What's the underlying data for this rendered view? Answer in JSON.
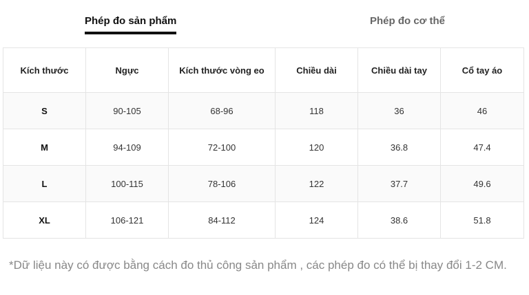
{
  "tabs": {
    "product_label": "Phép đo sản phẩm",
    "body_label": "Phép đo cơ thể"
  },
  "table": {
    "headers": [
      "Kích thước",
      "Ngực",
      "Kích thước vòng eo",
      "Chiều dài",
      "Chiều dài tay",
      "Cổ tay áo"
    ],
    "rows": [
      [
        "S",
        "90-105",
        "68-96",
        "118",
        "36",
        "46"
      ],
      [
        "M",
        "94-109",
        "72-100",
        "120",
        "36.8",
        "47.4"
      ],
      [
        "L",
        "100-115",
        "78-106",
        "122",
        "37.7",
        "49.6"
      ],
      [
        "XL",
        "106-121",
        "84-112",
        "124",
        "38.6",
        "51.8"
      ]
    ]
  },
  "note": "*Dữ liệu này có được bằng cách đo thủ công sản phẩm , các phép đo có thể bị thay đổi 1-2 CM.",
  "colors": {
    "active_tab": "#111111",
    "inactive_tab": "#666666",
    "border": "#e4e4e4",
    "note_text": "#888888"
  }
}
